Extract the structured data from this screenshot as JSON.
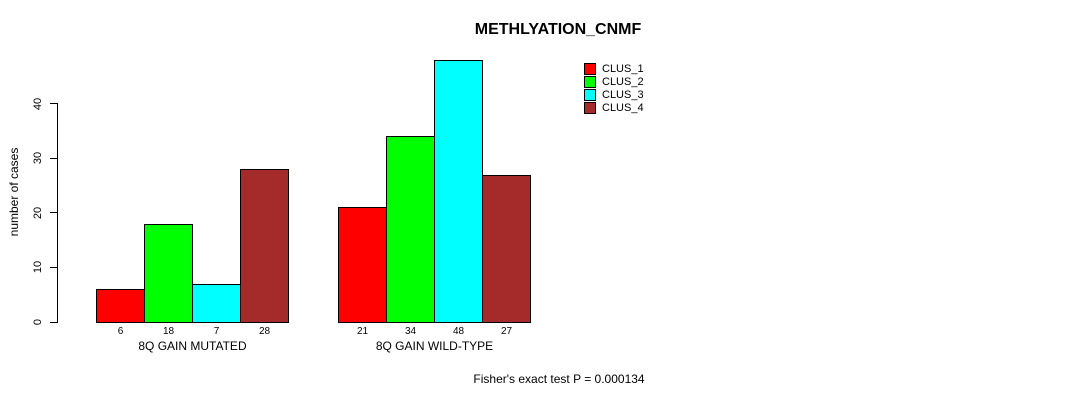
{
  "chart_data": {
    "type": "bar",
    "title": "METHLYATION_CNMF",
    "ylabel": "number of cases",
    "xlabel": "",
    "categories": [
      "8Q GAIN MUTATED",
      "8Q GAIN WILD-TYPE"
    ],
    "series": [
      {
        "name": "CLUS_1",
        "color": "#ff0000",
        "values": [
          6,
          21
        ]
      },
      {
        "name": "CLUS_2",
        "color": "#00ff00",
        "values": [
          18,
          34
        ]
      },
      {
        "name": "CLUS_3",
        "color": "#00ffff",
        "values": [
          7,
          48
        ]
      },
      {
        "name": "CLUS_4",
        "color": "#a52a2a",
        "values": [
          28,
          27
        ]
      }
    ],
    "yticks": [
      0,
      10,
      20,
      30,
      40
    ],
    "ylim": [
      0,
      40
    ],
    "bar_value_labels": true,
    "legend_position": "top-right",
    "grid": false,
    "annotation": "Fisher's exact test P = 0.000134"
  }
}
